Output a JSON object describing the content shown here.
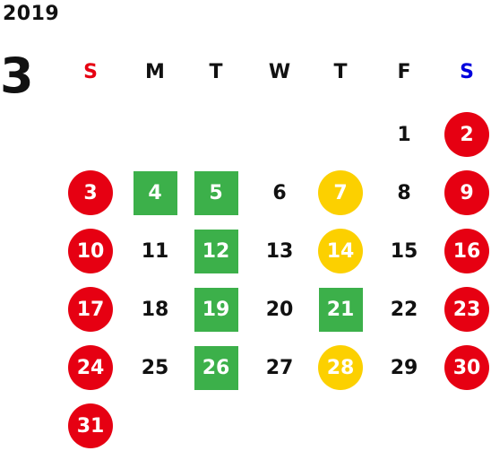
{
  "calendar": {
    "year": "2019",
    "month": "3",
    "weekdays": [
      {
        "label": "S",
        "color": "#e60012"
      },
      {
        "label": "M",
        "color": "#111111"
      },
      {
        "label": "T",
        "color": "#111111"
      },
      {
        "label": "W",
        "color": "#111111"
      },
      {
        "label": "T",
        "color": "#111111"
      },
      {
        "label": "F",
        "color": "#111111"
      },
      {
        "label": "S",
        "color": "#0000dd"
      }
    ],
    "start_weekday_index": 5,
    "days": [
      {
        "day": "1",
        "mark": "none"
      },
      {
        "day": "2",
        "mark": "red-circle"
      },
      {
        "day": "3",
        "mark": "red-circle"
      },
      {
        "day": "4",
        "mark": "green-square"
      },
      {
        "day": "5",
        "mark": "green-square"
      },
      {
        "day": "6",
        "mark": "none"
      },
      {
        "day": "7",
        "mark": "yellow-circle"
      },
      {
        "day": "8",
        "mark": "none"
      },
      {
        "day": "9",
        "mark": "red-circle"
      },
      {
        "day": "10",
        "mark": "red-circle"
      },
      {
        "day": "11",
        "mark": "none"
      },
      {
        "day": "12",
        "mark": "green-square"
      },
      {
        "day": "13",
        "mark": "none"
      },
      {
        "day": "14",
        "mark": "yellow-circle"
      },
      {
        "day": "15",
        "mark": "none"
      },
      {
        "day": "16",
        "mark": "red-circle"
      },
      {
        "day": "17",
        "mark": "red-circle"
      },
      {
        "day": "18",
        "mark": "none"
      },
      {
        "day": "19",
        "mark": "green-square"
      },
      {
        "day": "20",
        "mark": "none"
      },
      {
        "day": "21",
        "mark": "green-square"
      },
      {
        "day": "22",
        "mark": "none"
      },
      {
        "day": "23",
        "mark": "red-circle"
      },
      {
        "day": "24",
        "mark": "red-circle"
      },
      {
        "day": "25",
        "mark": "none"
      },
      {
        "day": "26",
        "mark": "green-square"
      },
      {
        "day": "27",
        "mark": "none"
      },
      {
        "day": "28",
        "mark": "yellow-circle"
      },
      {
        "day": "29",
        "mark": "none"
      },
      {
        "day": "30",
        "mark": "red-circle"
      },
      {
        "day": "31",
        "mark": "red-circle"
      }
    ]
  },
  "colors": {
    "red": "#e60012",
    "green": "#3cb04a",
    "yellow": "#fcd000",
    "text": "#111111"
  }
}
